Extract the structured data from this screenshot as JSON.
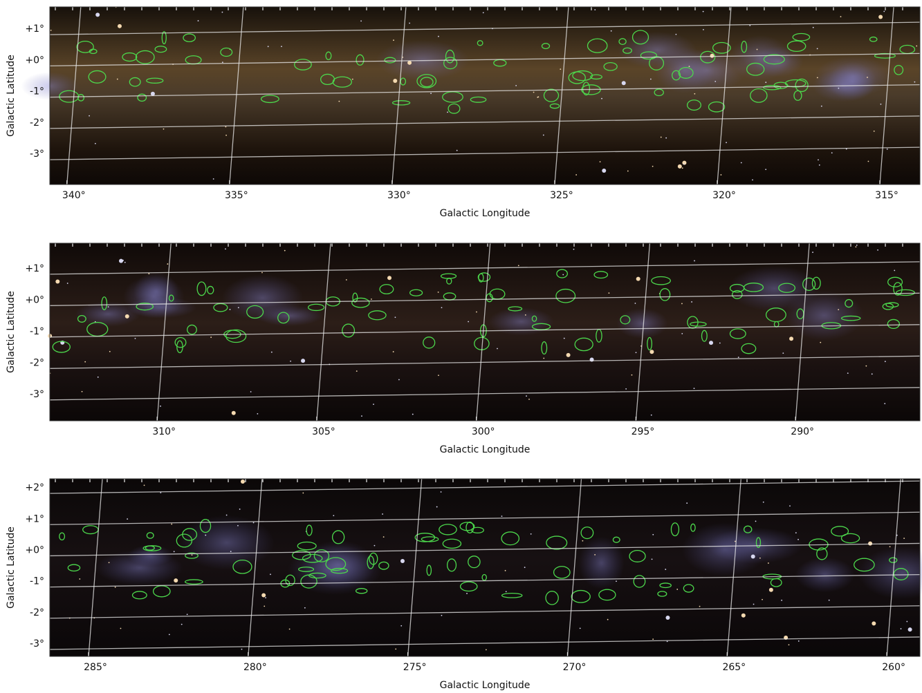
{
  "chart_data": [
    {
      "type": "map",
      "xlabel": "Galactic Longitude",
      "ylabel": "Galactic Latitude",
      "xlim": [
        340.74,
        313.98
      ],
      "ylim": [
        -3.97,
        1.71
      ],
      "xticks": [
        {
          "value": 340,
          "label": "340°"
        },
        {
          "value": 335,
          "label": "335°"
        },
        {
          "value": 330,
          "label": "330°"
        },
        {
          "value": 325,
          "label": "325°"
        },
        {
          "value": 320,
          "label": "320°"
        },
        {
          "value": 315,
          "label": "315°"
        }
      ],
      "yticks": [
        {
          "value": 1,
          "label": "+1°"
        },
        {
          "value": 0,
          "label": "+0°"
        },
        {
          "value": -1,
          "label": "-1°"
        },
        {
          "value": -2,
          "label": "-2°"
        },
        {
          "value": -3,
          "label": "-3°"
        }
      ]
    },
    {
      "type": "map",
      "xlabel": "Galactic Longitude",
      "ylabel": "Galactic Latitude",
      "xlim": [
        313.58,
        286.32
      ],
      "ylim": [
        -3.84,
        1.81
      ],
      "xticks": [
        {
          "value": 310,
          "label": "310°"
        },
        {
          "value": 305,
          "label": "305°"
        },
        {
          "value": 300,
          "label": "300°"
        },
        {
          "value": 295,
          "label": "295°"
        },
        {
          "value": 290,
          "label": "290°"
        }
      ],
      "yticks": [
        {
          "value": 1,
          "label": "+1°"
        },
        {
          "value": 0,
          "label": "+0°"
        },
        {
          "value": -1,
          "label": "-1°"
        },
        {
          "value": -2,
          "label": "-2°"
        },
        {
          "value": -3,
          "label": "-3°"
        }
      ]
    },
    {
      "type": "map",
      "xlabel": "Galactic Longitude",
      "ylabel": "Galactic Latitude",
      "xlim": [
        286.43,
        259.18
      ],
      "ylim": [
        -3.4,
        2.29
      ],
      "xticks": [
        {
          "value": 285,
          "label": "285°"
        },
        {
          "value": 280,
          "label": "280°"
        },
        {
          "value": 275,
          "label": "275°"
        },
        {
          "value": 270,
          "label": "270°"
        },
        {
          "value": 265,
          "label": "265°"
        },
        {
          "value": 260,
          "label": "260°"
        }
      ],
      "yticks": [
        {
          "value": 2,
          "label": "+2°"
        },
        {
          "value": 1,
          "label": "+1°"
        },
        {
          "value": 0,
          "label": "+0°"
        },
        {
          "value": -1,
          "label": "-1°"
        },
        {
          "value": -2,
          "label": "-2°"
        },
        {
          "value": -3,
          "label": "-3°"
        }
      ]
    }
  ]
}
